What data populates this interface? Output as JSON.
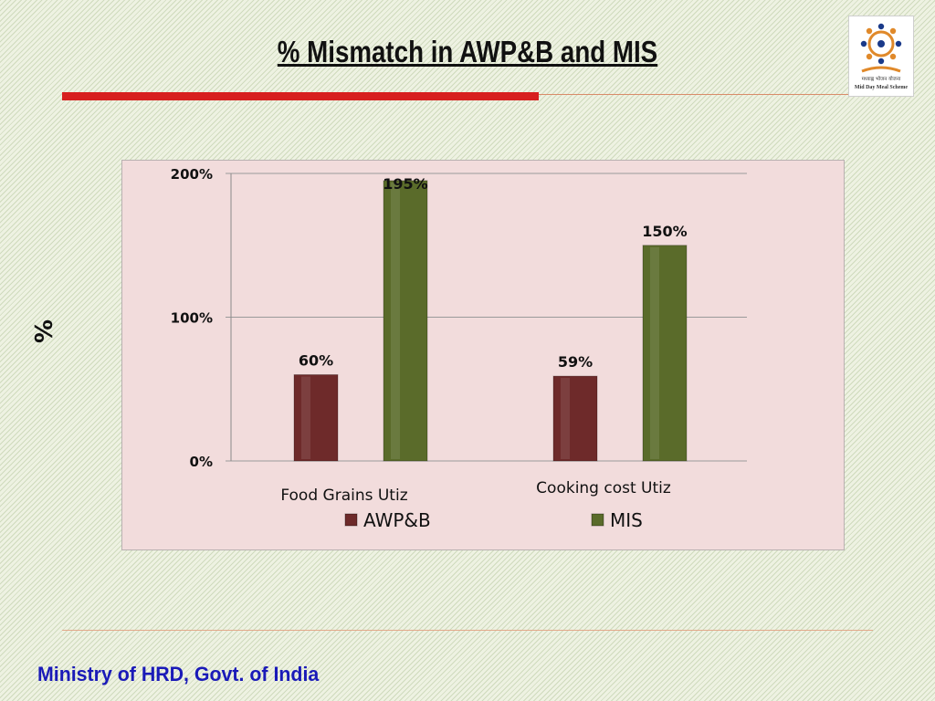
{
  "slide": {
    "title": "% Mismatch in AWP&B and MIS",
    "footer": "Ministry of HRD, Govt. of India",
    "logo_caption": "Mid Day Meal Scheme",
    "logo_caption_hindi": "मध्याह्न भोजन योजना"
  },
  "colors": {
    "title_rule": "#d71f1f",
    "footer_text": "#1a1ab8",
    "awpb": "#6e2a2a",
    "mis": "#5a6b2a",
    "plot_background": "#f2dcdc"
  },
  "chart_data": {
    "type": "bar",
    "title": "",
    "ylabel": "%",
    "xlabel": "",
    "categories": [
      "Food Grains Utiz",
      "Cooking cost Utiz"
    ],
    "series": [
      {
        "name": "AWP&B",
        "values": [
          60,
          59
        ],
        "labels": [
          "60%",
          "59%"
        ],
        "color": "#6e2a2a"
      },
      {
        "name": "MIS",
        "values": [
          195,
          150
        ],
        "labels": [
          "195%",
          "150%"
        ],
        "color": "#5a6b2a"
      }
    ],
    "ylim": [
      0,
      200
    ],
    "y_ticks": [
      0,
      100,
      200
    ],
    "y_tick_labels": [
      "0%",
      "100%",
      "200%"
    ],
    "grid": true,
    "legend_position": "bottom"
  }
}
